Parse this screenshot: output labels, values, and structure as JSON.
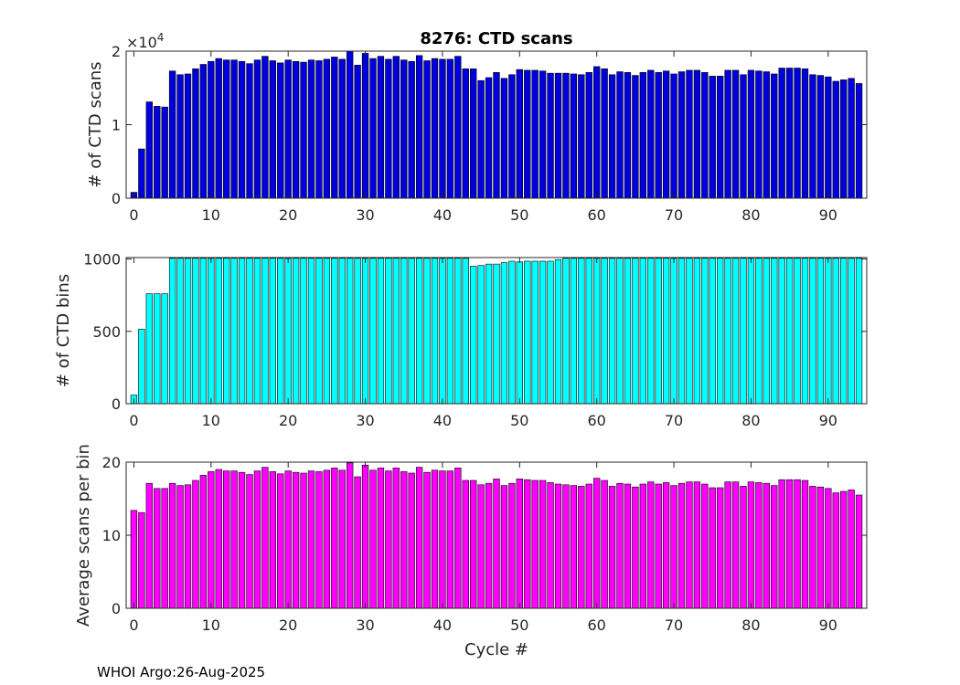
{
  "title": "8276: CTD scans",
  "footer": "WHOI Argo:26-Aug-2025",
  "xlabel": "Cycle #",
  "chart_data": [
    {
      "type": "bar",
      "ylabel": "# of CTD scans",
      "color": "#0000dd",
      "xlim": [
        -1,
        95
      ],
      "ylim": [
        0,
        20000
      ],
      "yticks": [
        0,
        10000,
        20000
      ],
      "ytick_labels": [
        "0",
        "1",
        "2"
      ],
      "exponent_label": "×10",
      "exponent_power": "4",
      "xticks": [
        0,
        10,
        20,
        30,
        40,
        50,
        60,
        70,
        80,
        90
      ],
      "xtick_labels": [
        "0",
        "10",
        "20",
        "30",
        "40",
        "50",
        "60",
        "70",
        "80",
        "90"
      ],
      "x": [
        0,
        1,
        2,
        3,
        4,
        5,
        6,
        7,
        8,
        9,
        10,
        11,
        12,
        13,
        14,
        15,
        16,
        17,
        18,
        19,
        20,
        21,
        22,
        23,
        24,
        25,
        26,
        27,
        28,
        29,
        30,
        31,
        32,
        33,
        34,
        35,
        36,
        37,
        38,
        39,
        40,
        41,
        42,
        43,
        44,
        45,
        46,
        47,
        48,
        49,
        50,
        51,
        52,
        53,
        54,
        55,
        56,
        57,
        58,
        59,
        60,
        61,
        62,
        63,
        64,
        65,
        66,
        67,
        68,
        69,
        70,
        71,
        72,
        73,
        74,
        75,
        76,
        77,
        78,
        79,
        80,
        81,
        82,
        83,
        84,
        85,
        86,
        87,
        88,
        89,
        90,
        91,
        92,
        93,
        94
      ],
      "values": [
        800,
        6700,
        13100,
        12500,
        12400,
        17300,
        16800,
        16900,
        17600,
        18200,
        18600,
        19000,
        18800,
        18800,
        18600,
        18300,
        18800,
        19300,
        18700,
        18400,
        18800,
        18600,
        18500,
        18800,
        18700,
        18900,
        19200,
        18900,
        20000,
        18100,
        19700,
        19000,
        19300,
        18900,
        19300,
        18800,
        18600,
        19400,
        18700,
        19000,
        18900,
        18900,
        19300,
        17600,
        17600,
        16000,
        16400,
        17100,
        16300,
        16800,
        17500,
        17400,
        17400,
        17300,
        17000,
        17000,
        17000,
        16900,
        16800,
        17100,
        17900,
        17600,
        16800,
        17200,
        17100,
        16700,
        17100,
        17400,
        17100,
        17300,
        16900,
        17200,
        17400,
        17400,
        17100,
        16600,
        16600,
        17400,
        17400,
        16800,
        17400,
        17300,
        17200,
        16900,
        17700,
        17700,
        17700,
        17600,
        16800,
        16700,
        16500,
        15900,
        16100,
        16300,
        15600
      ]
    },
    {
      "type": "bar",
      "ylabel": "# of CTD bins",
      "color": "#00ffff",
      "xlim": [
        -1,
        95
      ],
      "ylim": [
        0,
        1010
      ],
      "yticks": [
        0,
        500,
        1000
      ],
      "ytick_labels": [
        "0",
        "500",
        "1000"
      ],
      "xticks": [
        0,
        10,
        20,
        30,
        40,
        50,
        60,
        70,
        80,
        90
      ],
      "xtick_labels": [
        "0",
        "10",
        "20",
        "30",
        "40",
        "50",
        "60",
        "70",
        "80",
        "90"
      ],
      "x": [
        0,
        1,
        2,
        3,
        4,
        5,
        6,
        7,
        8,
        9,
        10,
        11,
        12,
        13,
        14,
        15,
        16,
        17,
        18,
        19,
        20,
        21,
        22,
        23,
        24,
        25,
        26,
        27,
        28,
        29,
        30,
        31,
        32,
        33,
        34,
        35,
        36,
        37,
        38,
        39,
        40,
        41,
        42,
        43,
        44,
        45,
        46,
        47,
        48,
        49,
        50,
        51,
        52,
        53,
        54,
        55,
        56,
        57,
        58,
        59,
        60,
        61,
        62,
        63,
        64,
        65,
        66,
        67,
        68,
        69,
        70,
        71,
        72,
        73,
        74,
        75,
        76,
        77,
        78,
        79,
        80,
        81,
        82,
        83,
        84,
        85,
        86,
        87,
        88,
        89,
        90,
        91,
        92,
        93,
        94
      ],
      "values": [
        60,
        515,
        760,
        760,
        760,
        1005,
        1005,
        1005,
        1005,
        1005,
        1005,
        1005,
        1005,
        1005,
        1005,
        1005,
        1005,
        1005,
        1005,
        1005,
        1005,
        1005,
        1005,
        1005,
        1005,
        1005,
        1005,
        1005,
        1005,
        1005,
        1005,
        1005,
        1005,
        1005,
        1005,
        1005,
        1005,
        1005,
        1005,
        1005,
        1005,
        1005,
        1005,
        1005,
        950,
        955,
        965,
        965,
        975,
        985,
        980,
        985,
        985,
        985,
        985,
        995,
        1005,
        1005,
        1005,
        1005,
        1005,
        1005,
        1005,
        1005,
        1005,
        1005,
        1005,
        1005,
        1005,
        1005,
        1005,
        1005,
        1005,
        1005,
        1005,
        1005,
        1005,
        1005,
        1005,
        1005,
        1005,
        1005,
        1005,
        1005,
        1005,
        1005,
        1005,
        1005,
        1005,
        1005,
        1005,
        1005,
        1005,
        1005,
        1005
      ]
    },
    {
      "type": "bar",
      "ylabel": "Average scans per bin",
      "color": "#ff00ff",
      "xlim": [
        -1,
        95
      ],
      "ylim": [
        0,
        20
      ],
      "yticks": [
        0,
        10,
        20
      ],
      "ytick_labels": [
        "0",
        "10",
        "20"
      ],
      "xticks": [
        0,
        10,
        20,
        30,
        40,
        50,
        60,
        70,
        80,
        90
      ],
      "xtick_labels": [
        "0",
        "10",
        "20",
        "30",
        "40",
        "50",
        "60",
        "70",
        "80",
        "90"
      ],
      "x": [
        0,
        1,
        2,
        3,
        4,
        5,
        6,
        7,
        8,
        9,
        10,
        11,
        12,
        13,
        14,
        15,
        16,
        17,
        18,
        19,
        20,
        21,
        22,
        23,
        24,
        25,
        26,
        27,
        28,
        29,
        30,
        31,
        32,
        33,
        34,
        35,
        36,
        37,
        38,
        39,
        40,
        41,
        42,
        43,
        44,
        45,
        46,
        47,
        48,
        49,
        50,
        51,
        52,
        53,
        54,
        55,
        56,
        57,
        58,
        59,
        60,
        61,
        62,
        63,
        64,
        65,
        66,
        67,
        68,
        69,
        70,
        71,
        72,
        73,
        74,
        75,
        76,
        77,
        78,
        79,
        80,
        81,
        82,
        83,
        84,
        85,
        86,
        87,
        88,
        89,
        90,
        91,
        92,
        93,
        94
      ],
      "values": [
        13.4,
        13.1,
        17.1,
        16.4,
        16.4,
        17.1,
        16.8,
        16.9,
        17.5,
        18.2,
        18.7,
        19.0,
        18.8,
        18.8,
        18.6,
        18.3,
        18.8,
        19.3,
        18.7,
        18.4,
        18.8,
        18.6,
        18.5,
        18.8,
        18.7,
        18.9,
        19.2,
        18.9,
        19.9,
        18.0,
        19.6,
        18.9,
        19.2,
        18.8,
        19.2,
        18.7,
        18.5,
        19.3,
        18.6,
        18.9,
        18.8,
        18.8,
        19.2,
        17.5,
        17.5,
        16.9,
        17.1,
        17.7,
        16.8,
        17.1,
        17.7,
        17.6,
        17.5,
        17.5,
        17.2,
        17.0,
        16.9,
        16.8,
        16.7,
        17.0,
        17.8,
        17.5,
        16.7,
        17.1,
        17.0,
        16.6,
        17.0,
        17.3,
        17.0,
        17.2,
        16.8,
        17.1,
        17.3,
        17.3,
        17.0,
        16.5,
        16.5,
        17.3,
        17.3,
        16.7,
        17.3,
        17.2,
        17.1,
        16.8,
        17.6,
        17.6,
        17.6,
        17.5,
        16.7,
        16.6,
        16.4,
        15.8,
        16.0,
        16.2,
        15.5
      ]
    }
  ]
}
